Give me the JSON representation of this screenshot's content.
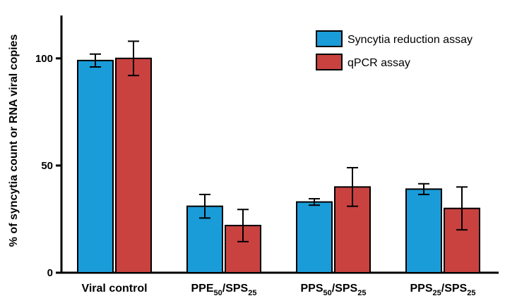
{
  "chart_data": {
    "type": "bar",
    "title": "",
    "ylabel": "% of syncytia count or RNA viral copies",
    "xlabel": "",
    "ylim": [
      0,
      120
    ],
    "yticks": [
      0,
      50,
      100
    ],
    "grid": false,
    "legend_position": "top-right",
    "categories": [
      {
        "base": "Viral control",
        "parts": []
      },
      {
        "base": "",
        "parts": [
          {
            "t": "PPE"
          },
          {
            "t": "50",
            "sub": true
          },
          {
            "t": "/SPS"
          },
          {
            "t": "25",
            "sub": true
          }
        ]
      },
      {
        "base": "",
        "parts": [
          {
            "t": "PPS"
          },
          {
            "t": "50",
            "sub": true
          },
          {
            "t": "/SPS"
          },
          {
            "t": "25",
            "sub": true
          }
        ]
      },
      {
        "base": "",
        "parts": [
          {
            "t": "PPS"
          },
          {
            "t": "25",
            "sub": true
          },
          {
            "t": "/SPS"
          },
          {
            "t": "25",
            "sub": true
          }
        ]
      }
    ],
    "series": [
      {
        "name": "Syncytia reduction assay",
        "color": "#1a9cd8",
        "values": [
          99,
          31,
          33,
          39
        ],
        "errors": [
          3,
          5.5,
          1.5,
          2.5
        ]
      },
      {
        "name": "qPCR assay",
        "color": "#c9423f",
        "values": [
          100,
          22,
          40,
          30
        ],
        "errors": [
          8,
          7.5,
          9,
          10
        ]
      }
    ]
  }
}
